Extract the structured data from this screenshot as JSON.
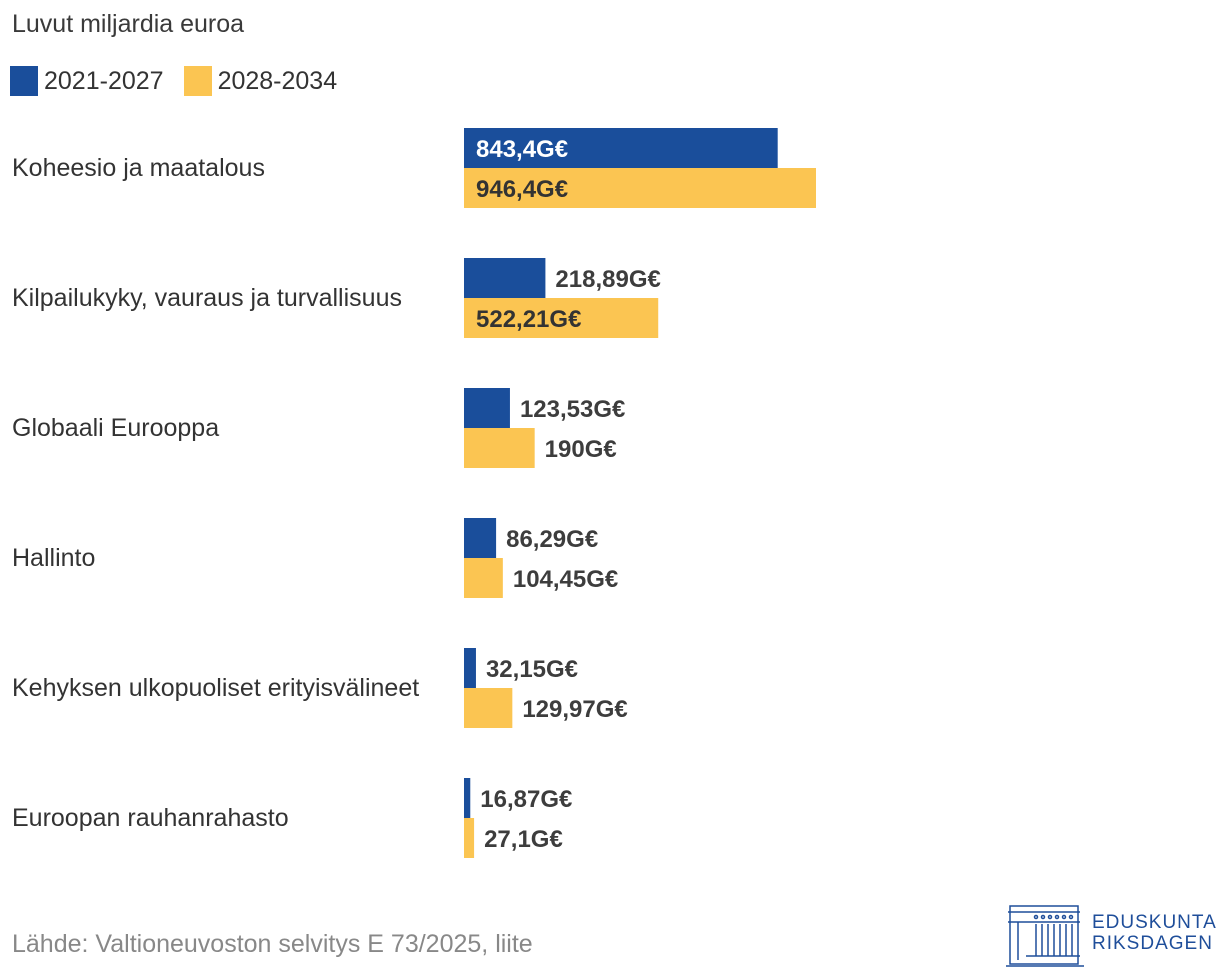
{
  "chart_data": {
    "type": "bar",
    "orientation": "horizontal",
    "subtitle": "Luvut miljardia euroa",
    "categories": [
      "Koheesio ja maatalous",
      "Kilpailukyky, vauraus ja turvallisuus",
      "Globaali Eurooppa",
      "Hallinto",
      "Kehyksen ulkopuoliset erityisvälineet",
      "Euroopan rauhanrahasto"
    ],
    "series": [
      {
        "name": "2021-2027",
        "color": "#1a4e9b",
        "values": [
          843.4,
          218.89,
          123.53,
          86.29,
          32.15,
          16.87
        ],
        "labels": [
          "843,4G€",
          "218,89G€",
          "123,53G€",
          "86,29G€",
          "32,15G€",
          "16,87G€"
        ]
      },
      {
        "name": "2028-2034",
        "color": "#fbc552",
        "values": [
          946.4,
          522.21,
          190,
          104.45,
          129.97,
          27.1
        ],
        "labels": [
          "946,4G€",
          "522,21G€",
          "190G€",
          "104,45G€",
          "129,97G€",
          "27,1G€"
        ]
      }
    ],
    "legend_position": "top-left",
    "source": "Lähde: Valtioneuvoston selvitys E 73/2025, liite"
  },
  "logo": {
    "line1": "EDUSKUNTA",
    "line2": "RIKSDAGEN"
  }
}
